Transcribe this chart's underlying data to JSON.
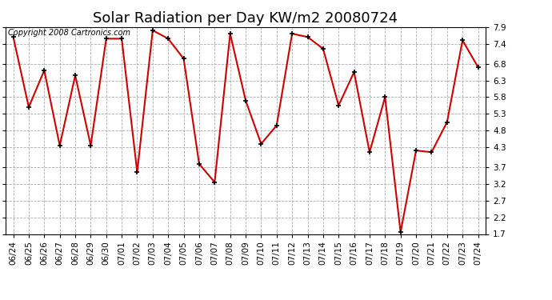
{
  "title": "Solar Radiation per Day KW/m2 20080724",
  "copyright": "Copyright 2008 Cartronics.com",
  "labels": [
    "06/24",
    "06/25",
    "06/26",
    "06/27",
    "06/28",
    "06/29",
    "06/30",
    "07/01",
    "07/02",
    "07/03",
    "07/04",
    "07/05",
    "07/06",
    "07/07",
    "07/08",
    "07/09",
    "07/10",
    "07/11",
    "07/12",
    "07/13",
    "07/14",
    "07/15",
    "07/16",
    "07/17",
    "07/18",
    "07/19",
    "07/20",
    "07/21",
    "07/22",
    "07/23",
    "07/24"
  ],
  "values": [
    7.6,
    5.5,
    6.6,
    4.35,
    6.45,
    4.35,
    7.55,
    7.55,
    3.55,
    7.8,
    7.55,
    6.95,
    3.8,
    3.25,
    7.7,
    5.7,
    4.4,
    4.95,
    7.7,
    7.6,
    7.25,
    5.55,
    6.55,
    4.15,
    5.8,
    1.75,
    4.2,
    4.15,
    5.05,
    7.5,
    6.7
  ],
  "line_color": "#cc0000",
  "marker_color": "#000000",
  "background_color": "#ffffff",
  "plot_bg_color": "#ffffff",
  "grid_color": "#aaaaaa",
  "ylim": [
    1.7,
    7.9
  ],
  "yticks": [
    1.7,
    2.2,
    2.7,
    3.2,
    3.7,
    4.3,
    4.8,
    5.3,
    5.8,
    6.3,
    6.8,
    7.4,
    7.9
  ],
  "title_fontsize": 13,
  "tick_fontsize": 7.5,
  "copyright_fontsize": 7
}
